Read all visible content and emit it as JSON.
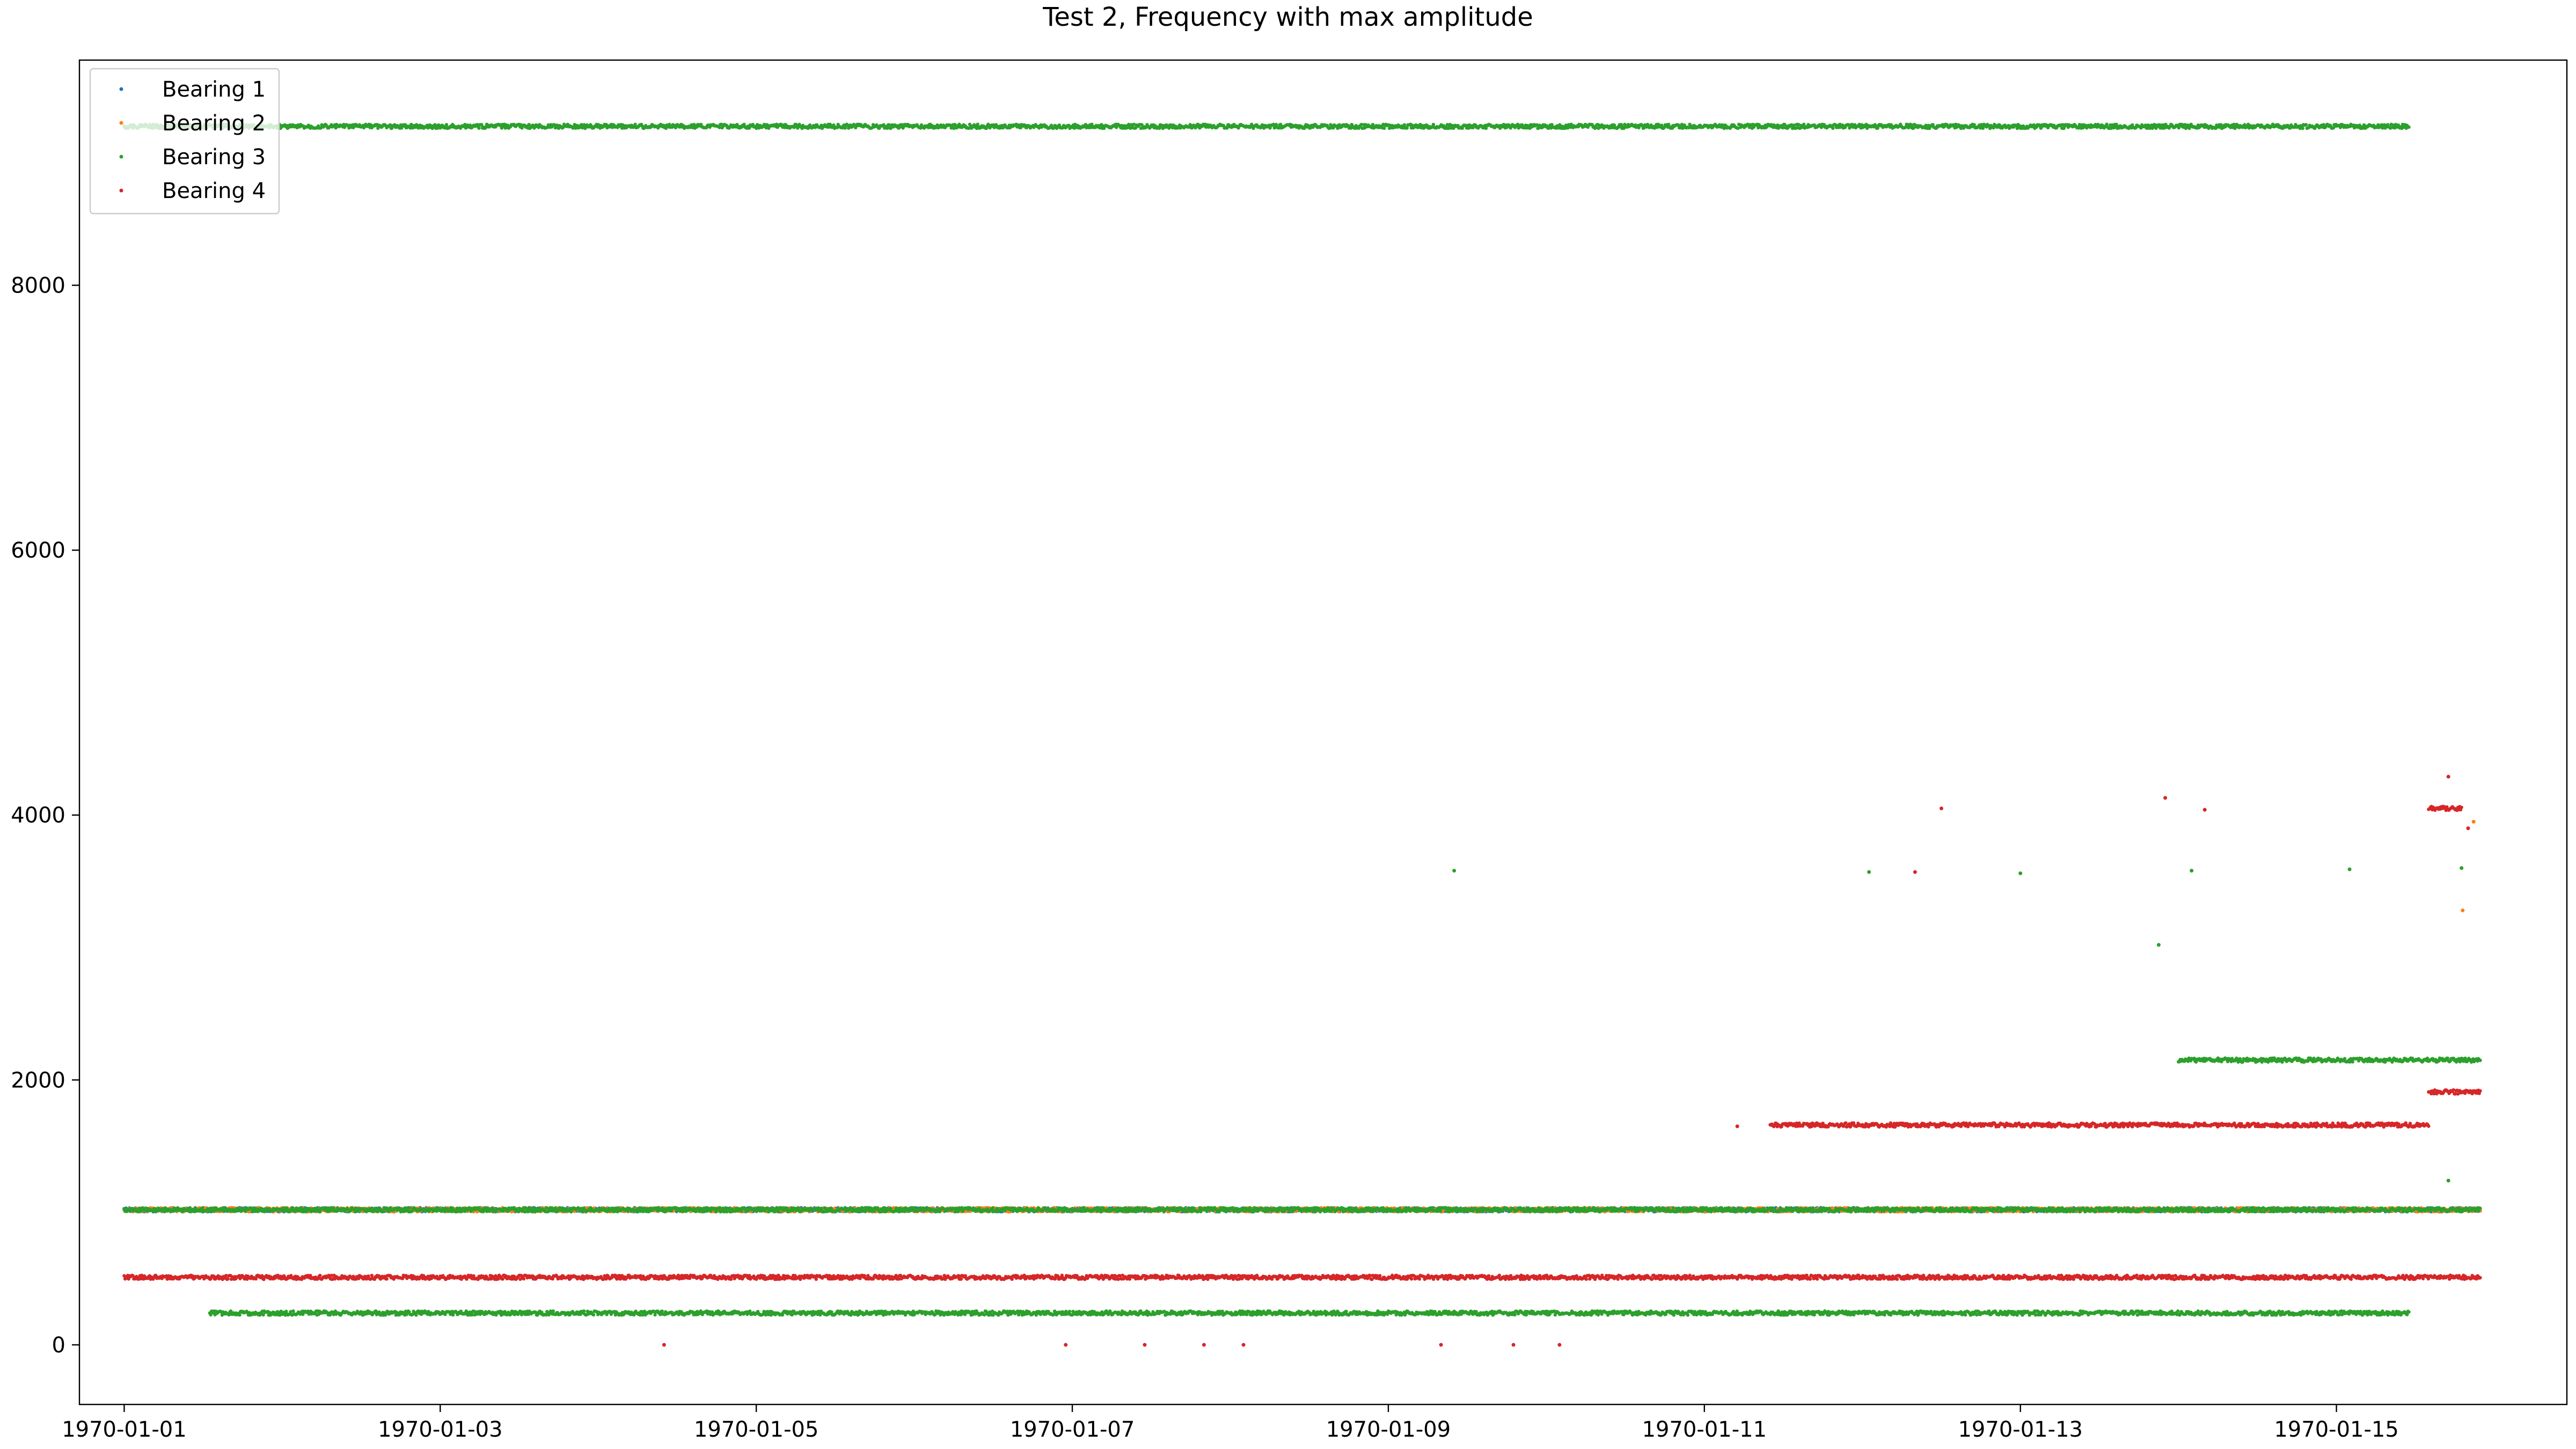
{
  "chart_data": {
    "type": "scatter",
    "title": "Test 2, Frequency with max amplitude",
    "xlabel": "",
    "ylabel": "",
    "x_ticks": [
      "1970-01-01",
      "1970-01-03",
      "1970-01-05",
      "1970-01-07",
      "1970-01-09",
      "1970-01-11",
      "1970-01-13",
      "1970-01-15"
    ],
    "y_ticks": [
      "0",
      "2000",
      "4000",
      "6000",
      "8000"
    ],
    "xlim": [
      "1970-01-00 17:12",
      "1970-01-16 11:00"
    ],
    "ylim": [
      -450,
      9700
    ],
    "grid": false,
    "legend_position": "top-left",
    "series": [
      {
        "name": "Bearing 1",
        "color": "#1f77b4",
        "segments": [
          {
            "x_start": "1970-01-01 00:00",
            "x_end": "1970-01-15 21:50",
            "y": 1020
          }
        ],
        "points": []
      },
      {
        "name": "Bearing 2",
        "color": "#ff7f0e",
        "segments": [
          {
            "x_start": "1970-01-01 00:00",
            "x_end": "1970-01-15 21:50",
            "y": 1020
          }
        ],
        "points": [
          {
            "x": "1970-01-15 19:10",
            "y": 3280
          },
          {
            "x": "1970-01-15 20:50",
            "y": 3950
          }
        ]
      },
      {
        "name": "Bearing 3",
        "color": "#2ca02c",
        "segments": [
          {
            "x_start": "1970-01-01 00:00",
            "x_end": "1970-01-15 11:00",
            "y": 9200
          },
          {
            "x_start": "1970-01-01 00:00",
            "x_end": "1970-01-15 21:50",
            "y": 1020
          },
          {
            "x_start": "1970-01-01 13:00",
            "x_end": "1970-01-15 11:00",
            "y": 240
          },
          {
            "x_start": "1970-01-14 00:00",
            "x_end": "1970-01-15 21:50",
            "y": 2150
          }
        ],
        "points": [
          {
            "x": "1970-01-09 10:00",
            "y": 3580
          },
          {
            "x": "1970-01-12 01:00",
            "y": 3570
          },
          {
            "x": "1970-01-13 00:00",
            "y": 3560
          },
          {
            "x": "1970-01-13 21:00",
            "y": 3020
          },
          {
            "x": "1970-01-14 02:00",
            "y": 3580
          },
          {
            "x": "1970-01-15 02:00",
            "y": 3590
          },
          {
            "x": "1970-01-15 19:00",
            "y": 3600
          },
          {
            "x": "1970-01-15 17:00",
            "y": 1240
          }
        ]
      },
      {
        "name": "Bearing 4",
        "color": "#d62728",
        "segments": [
          {
            "x_start": "1970-01-01 00:00",
            "x_end": "1970-01-15 21:50",
            "y": 510
          },
          {
            "x_start": "1970-01-11 10:00",
            "x_end": "1970-01-15 14:00",
            "y": 1660
          },
          {
            "x_start": "1970-01-15 14:00",
            "x_end": "1970-01-15 21:50",
            "y": 1910
          },
          {
            "x_start": "1970-01-15 14:00",
            "x_end": "1970-01-15 19:00",
            "y": 4050
          }
        ],
        "points": [
          {
            "x": "1970-01-04 10:00",
            "y": 0
          },
          {
            "x": "1970-01-06 23:00",
            "y": 0
          },
          {
            "x": "1970-01-07 11:00",
            "y": 0
          },
          {
            "x": "1970-01-07 20:00",
            "y": 0
          },
          {
            "x": "1970-01-08 02:00",
            "y": 0
          },
          {
            "x": "1970-01-09 08:00",
            "y": 0
          },
          {
            "x": "1970-01-09 19:00",
            "y": 0
          },
          {
            "x": "1970-01-10 02:00",
            "y": 0
          },
          {
            "x": "1970-01-12 12:00",
            "y": 4050
          },
          {
            "x": "1970-01-13 22:00",
            "y": 4130
          },
          {
            "x": "1970-01-14 04:00",
            "y": 4040
          },
          {
            "x": "1970-01-15 17:00",
            "y": 4290
          },
          {
            "x": "1970-01-15 20:00",
            "y": 3900
          },
          {
            "x": "1970-01-12 08:00",
            "y": 3570
          },
          {
            "x": "1970-01-11 05:00",
            "y": 1650
          }
        ]
      }
    ]
  }
}
